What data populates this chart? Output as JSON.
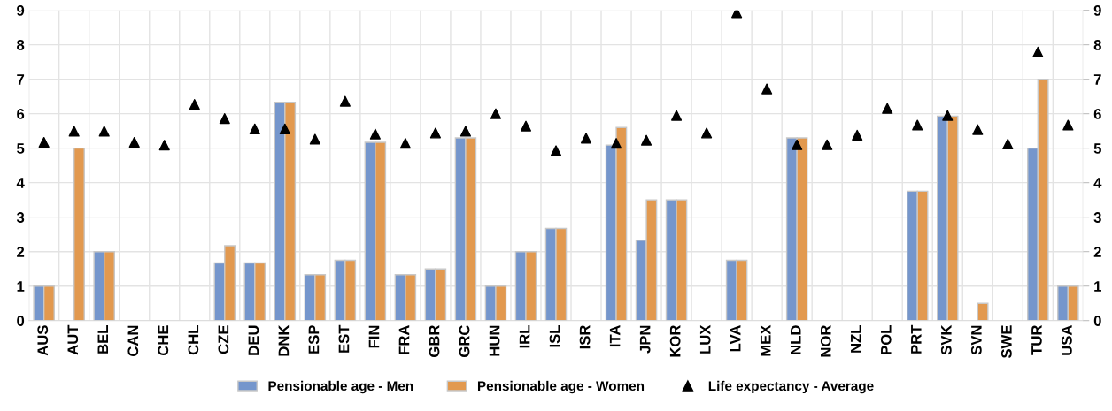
{
  "chart_data": {
    "type": "bar",
    "categories": [
      "AUS",
      "AUT",
      "BEL",
      "CAN",
      "CHE",
      "CHL",
      "CZE",
      "DEU",
      "DNK",
      "ESP",
      "EST",
      "FIN",
      "FRA",
      "GBR",
      "GRC",
      "HUN",
      "IRL",
      "ISL",
      "ISR",
      "ITA",
      "JPN",
      "KOR",
      "LUX",
      "LVA",
      "MEX",
      "NLD",
      "NOR",
      "NZL",
      "POL",
      "PRT",
      "SVK",
      "SVN",
      "SWE",
      "TUR",
      "USA"
    ],
    "series": [
      {
        "name": "Pensionable age - Men",
        "color": "#7596cc",
        "values": [
          1,
          null,
          2,
          null,
          null,
          null,
          1.67,
          1.67,
          6.33,
          1.33,
          1.75,
          5.17,
          1.33,
          1.5,
          5.3,
          1,
          2,
          2.67,
          null,
          5.09,
          2.33,
          3.5,
          null,
          1.75,
          null,
          5.3,
          null,
          null,
          null,
          3.75,
          5.93,
          null,
          null,
          5,
          1
        ]
      },
      {
        "name": "Pensionable age - Women",
        "color": "#e2994f",
        "values": [
          1,
          5,
          2,
          null,
          null,
          null,
          2.17,
          1.67,
          6.33,
          1.33,
          1.75,
          5.17,
          1.33,
          1.5,
          5.3,
          1,
          2,
          2.67,
          null,
          5.6,
          3.5,
          3.5,
          null,
          1.75,
          null,
          5.3,
          null,
          null,
          null,
          3.75,
          5.93,
          0.5,
          null,
          7,
          1
        ]
      },
      {
        "name": "Life expectancy - Average",
        "type": "scatter",
        "color": "#000000",
        "values": [
          5.17,
          5.49,
          5.49,
          5.17,
          5.09,
          6.27,
          5.86,
          5.56,
          5.56,
          5.26,
          6.36,
          5.41,
          5.14,
          5.44,
          5.49,
          6.0,
          5.64,
          4.93,
          5.29,
          5.14,
          5.23,
          5.95,
          5.44,
          8.93,
          6.72,
          5.1,
          5.1,
          5.38,
          6.15,
          5.67,
          5.95,
          5.54,
          5.12,
          7.79,
          5.67
        ]
      }
    ],
    "ylim": [
      0,
      9
    ],
    "yticks": [
      0,
      1,
      2,
      3,
      4,
      5,
      6,
      7,
      8,
      9
    ],
    "y2lim": [
      0,
      9
    ],
    "y2ticks": [
      0,
      1,
      2,
      3,
      4,
      5,
      6,
      7,
      8,
      9
    ],
    "grid": true,
    "legend": "bottom",
    "marker": "triangle"
  }
}
